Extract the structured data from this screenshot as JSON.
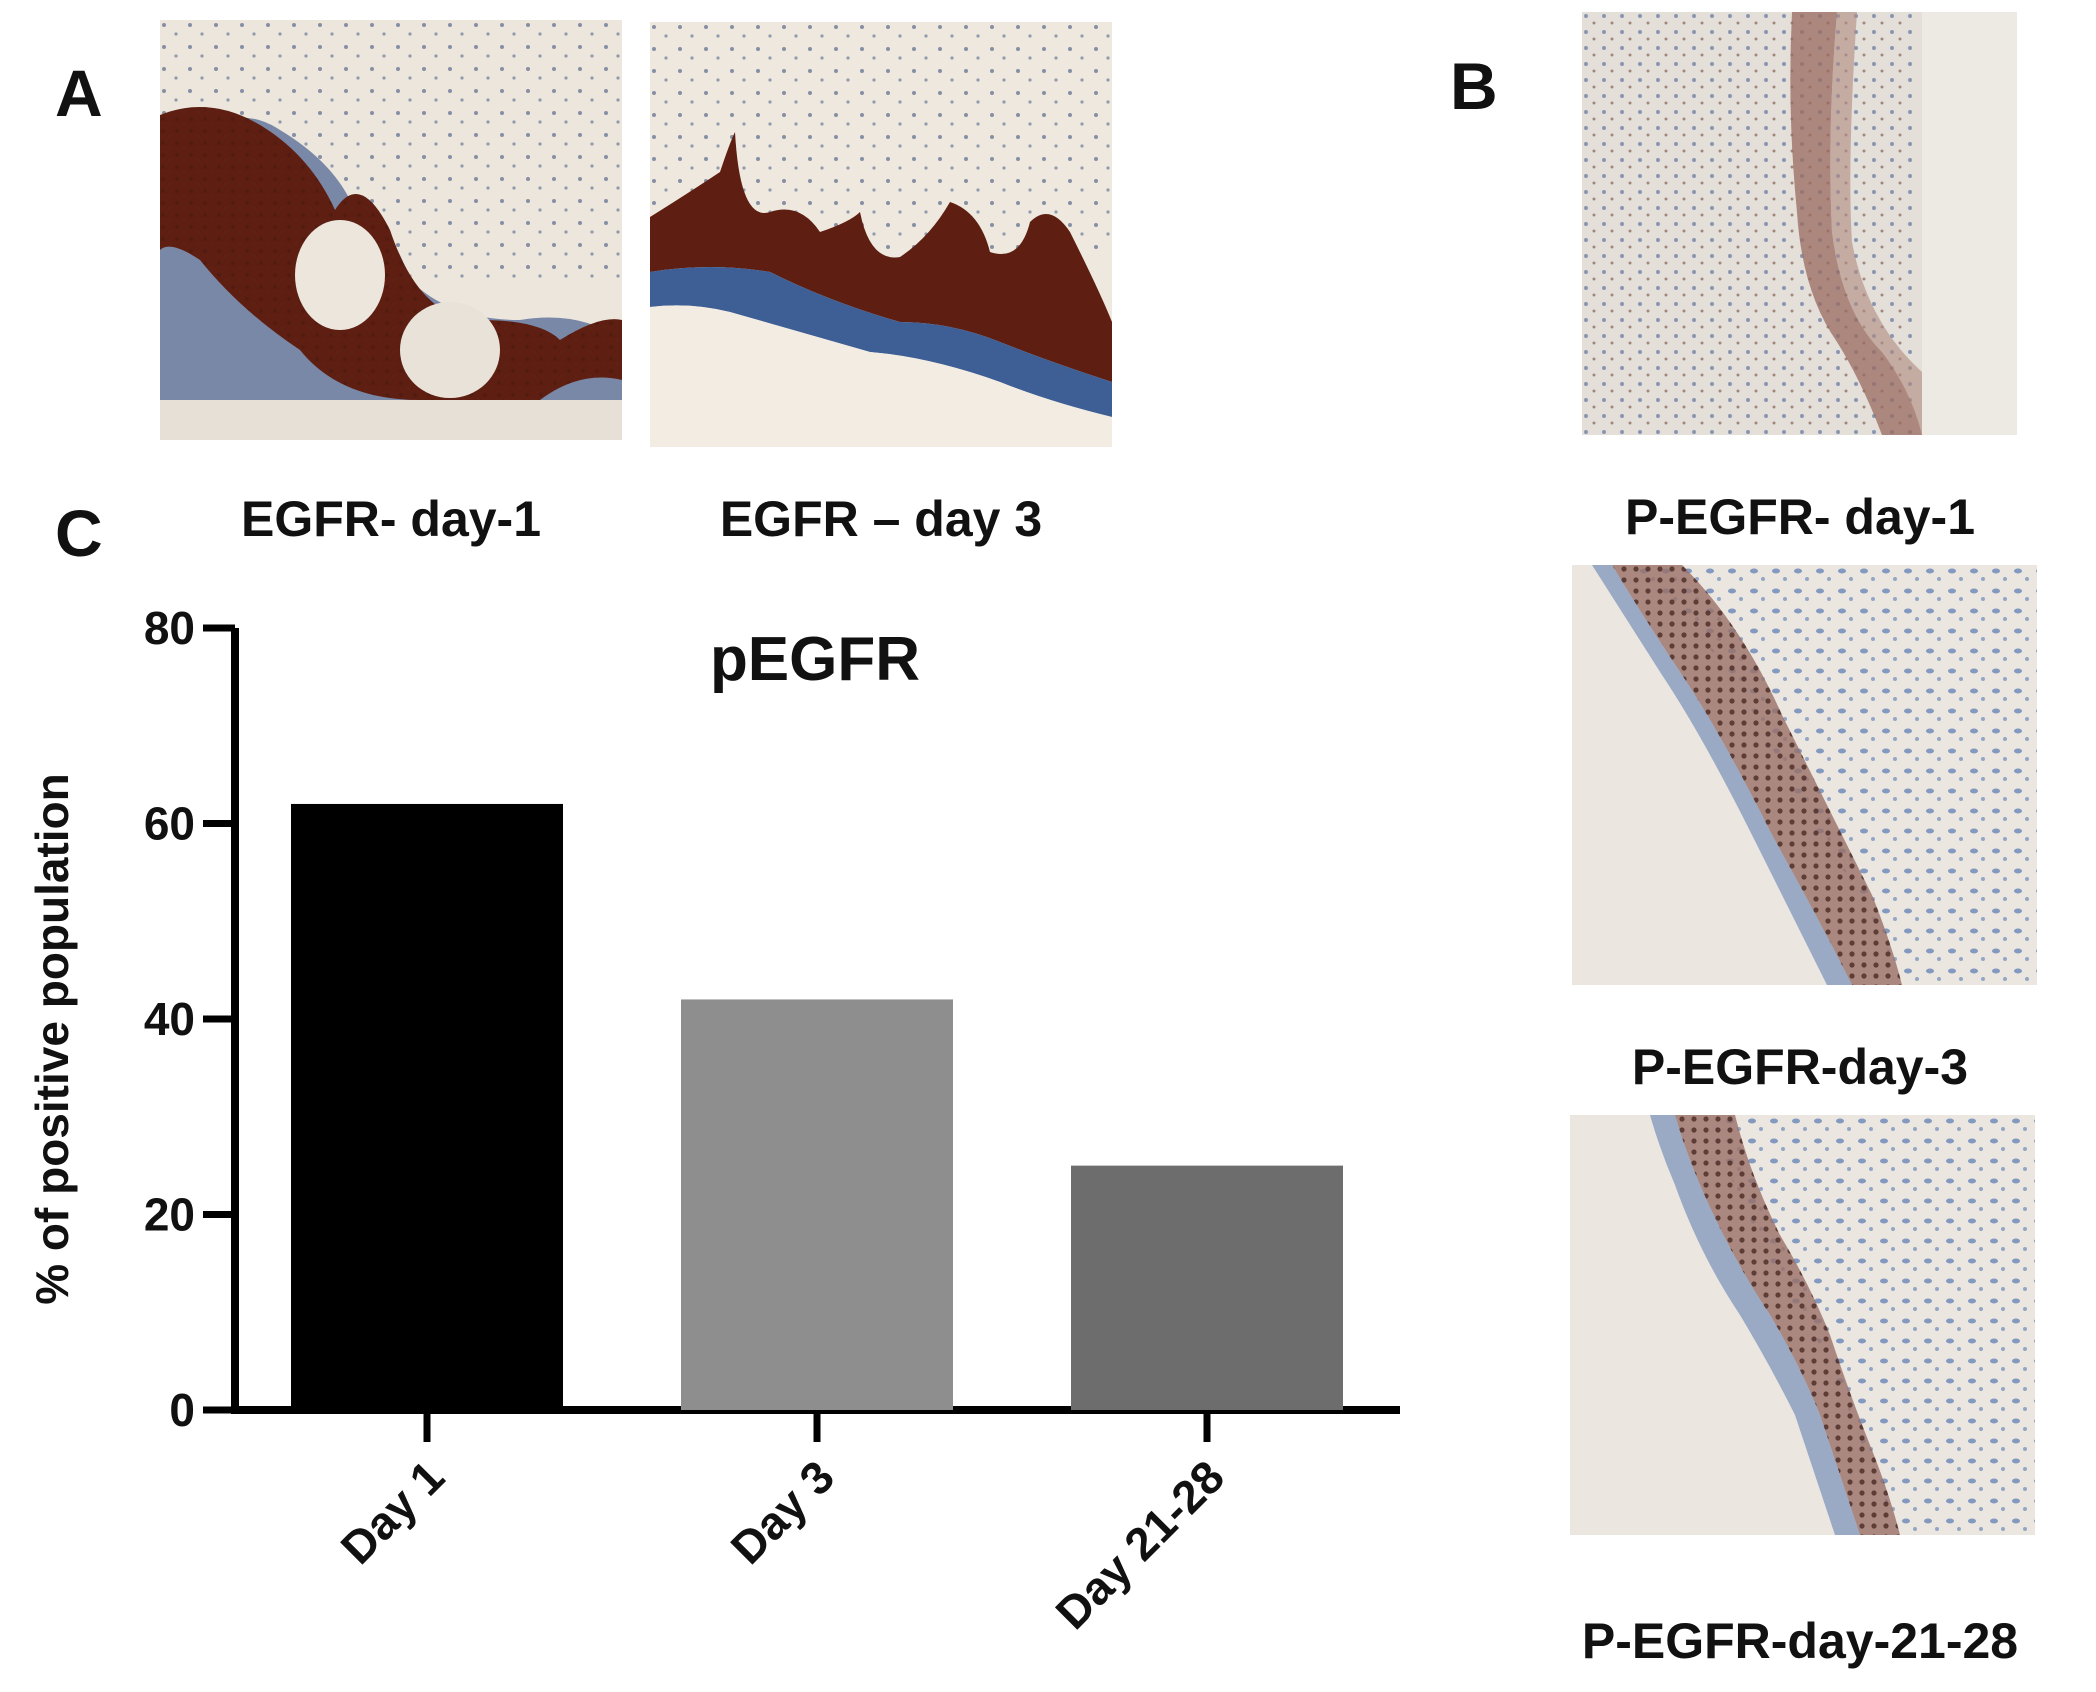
{
  "panels": {
    "a": {
      "letter": "A"
    },
    "b": {
      "letter": "B"
    },
    "c": {
      "letter": "C"
    }
  },
  "images": {
    "egfr_day1": {
      "caption": "EGFR- day-1",
      "stain": "brown-epidermis"
    },
    "egfr_day3": {
      "caption": "EGFR – day 3",
      "stain": "brown-epidermis"
    },
    "pegfr_day1": {
      "caption": "P-EGFR- day-1",
      "stain": "light-nuclear"
    },
    "pegfr_day3": {
      "caption": "P-EGFR-day-3",
      "stain": "nuclear"
    },
    "pegfr_day21_28": {
      "caption": "P-EGFR-day-21-28",
      "stain": "nuclear"
    }
  },
  "chart_data": {
    "type": "bar",
    "title": "pEGFR",
    "xlabel": "",
    "ylabel": "% of positive population",
    "categories": [
      "Day 1",
      "Day 3",
      "Day 21-28"
    ],
    "values": [
      62,
      42,
      25
    ],
    "bar_colors": [
      "#000000",
      "#8e8e8e",
      "#6d6d6d"
    ],
    "ylim": [
      0,
      80
    ],
    "yticks": [
      0,
      20,
      40,
      60,
      80
    ],
    "grid": false,
    "legend": "none"
  }
}
